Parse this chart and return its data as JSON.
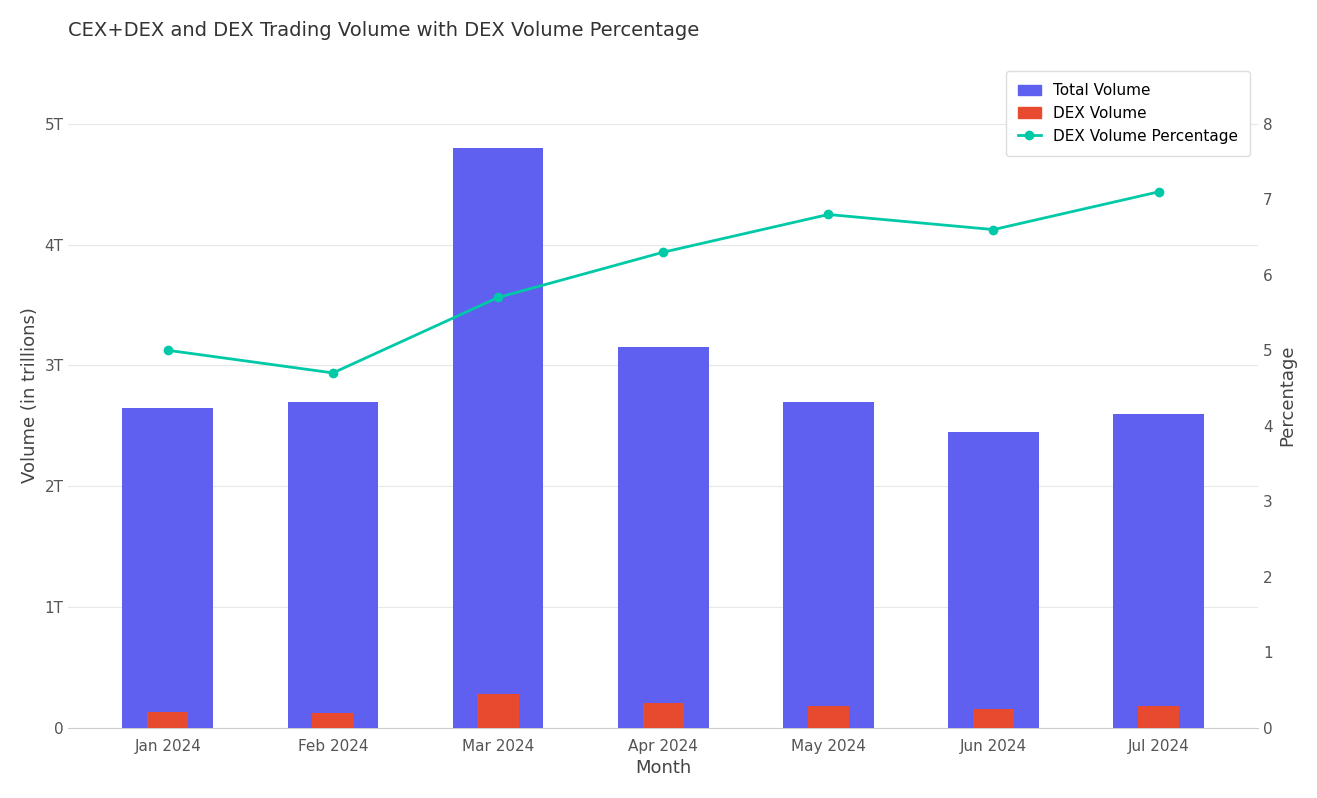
{
  "months": [
    "Jan 2024",
    "Feb 2024",
    "Mar 2024",
    "Apr 2024",
    "May 2024",
    "Jun 2024",
    "Jul 2024"
  ],
  "total_volume": [
    2.65,
    2.7,
    4.8,
    3.15,
    2.7,
    2.45,
    2.6
  ],
  "dex_volume": [
    0.13,
    0.12,
    0.28,
    0.2,
    0.18,
    0.15,
    0.18
  ],
  "dex_percentage": [
    5.0,
    4.7,
    5.7,
    6.3,
    6.8,
    6.6,
    7.1
  ],
  "total_volume_color": "#6060F0",
  "dex_volume_color": "#E84A2F",
  "dex_percentage_color": "#00C9A7",
  "title": "CEX+DEX and DEX Trading Volume with DEX Volume Percentage",
  "xlabel": "Month",
  "ylabel_left": "Volume (in trillions)",
  "ylabel_right": "Percentage",
  "ylim_left": [
    0,
    5.5
  ],
  "ylim_right": [
    0,
    8.8
  ],
  "yticks_left": [
    0,
    1,
    2,
    3,
    4,
    5
  ],
  "ytick_labels_left": [
    "0",
    "1T",
    "2T",
    "3T",
    "4T",
    "5T"
  ],
  "yticks_right": [
    0,
    1,
    2,
    3,
    4,
    5,
    6,
    7,
    8
  ],
  "background_color": "#ffffff",
  "grid_color": "#e8e8e8",
  "total_bar_width": 0.55,
  "dex_bar_width": 0.25,
  "title_fontsize": 14,
  "axis_label_fontsize": 13,
  "tick_fontsize": 11,
  "legend_fontsize": 11
}
